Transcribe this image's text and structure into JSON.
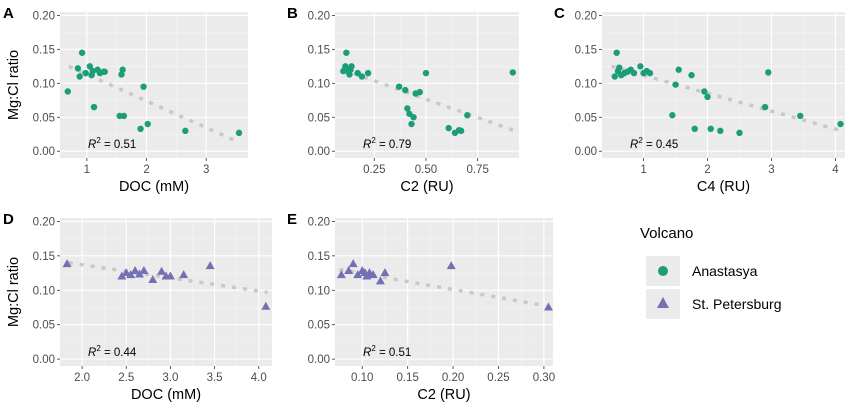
{
  "chart_data": [
    {
      "panel": "A",
      "type": "scatter",
      "xlabel": "DOC (mM)",
      "ylabel": "Mg:Cl ratio",
      "xlim": [
        0.55,
        3.7
      ],
      "ylim": [
        -0.01,
        0.205
      ],
      "xticks": [
        1,
        2,
        3
      ],
      "xtick_labels": [
        "1",
        "2",
        "3"
      ],
      "yticks": [
        0,
        0.05,
        0.1,
        0.15,
        0.2
      ],
      "ytick_labels": [
        "0.00",
        "0.05",
        "0.10",
        "0.15",
        "0.20"
      ],
      "annotation": "= 0.51",
      "trend": {
        "x": [
          0.7,
          3.5
        ],
        "y": [
          0.125,
          0.015
        ]
      },
      "series": [
        {
          "name": "Anastasya",
          "marker": "circle",
          "color": "#1b9e77",
          "x": [
            0.68,
            0.85,
            0.88,
            0.92,
            0.98,
            1.05,
            1.1,
            1.12,
            1.18,
            1.22,
            1.28,
            1.3,
            1.55,
            1.58,
            1.6,
            1.62,
            1.9,
            1.95,
            2.02,
            2.65,
            3.55,
            1.08
          ],
          "y": [
            0.088,
            0.122,
            0.11,
            0.145,
            0.115,
            0.125,
            0.118,
            0.065,
            0.12,
            0.115,
            0.117,
            0.117,
            0.052,
            0.113,
            0.12,
            0.052,
            0.033,
            0.095,
            0.04,
            0.03,
            0.027,
            0.112
          ]
        }
      ]
    },
    {
      "panel": "B",
      "type": "scatter",
      "xlabel": "C2 (RU)",
      "ylabel": "",
      "xlim": [
        0.06,
        0.95
      ],
      "ylim": [
        -0.01,
        0.205
      ],
      "xticks": [
        0.25,
        0.5,
        0.75
      ],
      "xtick_labels": [
        "0.25",
        "0.50",
        "0.75"
      ],
      "yticks": [
        0,
        0.05,
        0.1,
        0.15,
        0.2
      ],
      "ytick_labels": [
        "0.00",
        "0.05",
        "0.10",
        "0.15",
        "0.20"
      ],
      "annotation": "= 0.79",
      "trend": {
        "x": [
          0.1,
          0.93
        ],
        "y": [
          0.12,
          0.03
        ]
      },
      "series": [
        {
          "name": "Anastasya",
          "marker": "circle",
          "color": "#1b9e77",
          "x": [
            0.1,
            0.11,
            0.115,
            0.12,
            0.125,
            0.13,
            0.135,
            0.14,
            0.17,
            0.19,
            0.22,
            0.37,
            0.4,
            0.41,
            0.42,
            0.43,
            0.44,
            0.47,
            0.5,
            0.61,
            0.64,
            0.66,
            0.67,
            0.7,
            0.92,
            0.45
          ],
          "y": [
            0.118,
            0.125,
            0.145,
            0.12,
            0.117,
            0.113,
            0.12,
            0.125,
            0.115,
            0.11,
            0.115,
            0.095,
            0.09,
            0.063,
            0.055,
            0.04,
            0.05,
            0.087,
            0.115,
            0.034,
            0.027,
            0.031,
            0.03,
            0.053,
            0.116,
            0.085
          ]
        }
      ]
    },
    {
      "panel": "C",
      "type": "scatter",
      "xlabel": "C4 (RU)",
      "ylabel": "",
      "xlim": [
        0.35,
        4.15
      ],
      "ylim": [
        -0.01,
        0.205
      ],
      "xticks": [
        1,
        2,
        3,
        4
      ],
      "xtick_labels": [
        "1",
        "2",
        "3",
        "4"
      ],
      "yticks": [
        0,
        0.05,
        0.1,
        0.15,
        0.2
      ],
      "ytick_labels": [
        "0.00",
        "0.05",
        "0.10",
        "0.15",
        "0.20"
      ],
      "annotation": "= 0.45",
      "trend": {
        "x": [
          0.5,
          4.1
        ],
        "y": [
          0.125,
          0.03
        ]
      },
      "series": [
        {
          "name": "Anastasya",
          "marker": "circle",
          "color": "#1b9e77",
          "x": [
            0.55,
            0.58,
            0.6,
            0.62,
            0.65,
            0.7,
            0.75,
            0.85,
            0.95,
            1.0,
            1.05,
            1.1,
            1.45,
            1.55,
            1.75,
            1.8,
            1.95,
            2.0,
            2.05,
            2.2,
            2.5,
            2.9,
            2.95,
            3.45,
            4.08,
            1.5,
            0.8
          ],
          "y": [
            0.11,
            0.145,
            0.118,
            0.123,
            0.112,
            0.115,
            0.117,
            0.115,
            0.125,
            0.115,
            0.118,
            0.115,
            0.053,
            0.12,
            0.112,
            0.033,
            0.088,
            0.08,
            0.033,
            0.03,
            0.027,
            0.065,
            0.116,
            0.052,
            0.04,
            0.098,
            0.12
          ]
        }
      ]
    },
    {
      "panel": "D",
      "type": "scatter",
      "xlabel": "DOC (mM)",
      "ylabel": "Mg:Cl ratio",
      "xlim": [
        1.75,
        4.15
      ],
      "ylim": [
        -0.01,
        0.205
      ],
      "xticks": [
        2.0,
        2.5,
        3.0,
        3.5,
        4.0
      ],
      "xtick_labels": [
        "2.0",
        "2.5",
        "3.0",
        "3.5",
        "4.0"
      ],
      "yticks": [
        0,
        0.05,
        0.1,
        0.15,
        0.2
      ],
      "ytick_labels": [
        "0.00",
        "0.05",
        "0.10",
        "0.15",
        "0.20"
      ],
      "annotation": "= 0.44",
      "trend": {
        "x": [
          1.85,
          4.1
        ],
        "y": [
          0.14,
          0.097
        ]
      },
      "series": [
        {
          "name": "St. Petersburg",
          "marker": "triangle",
          "color": "#7570b3",
          "x": [
            1.83,
            2.45,
            2.5,
            2.55,
            2.6,
            2.65,
            2.7,
            2.8,
            2.9,
            2.95,
            3.0,
            3.15,
            3.45,
            4.08
          ],
          "y": [
            0.138,
            0.12,
            0.125,
            0.122,
            0.128,
            0.123,
            0.128,
            0.115,
            0.127,
            0.12,
            0.12,
            0.122,
            0.135,
            0.076
          ]
        }
      ]
    },
    {
      "panel": "E",
      "type": "scatter",
      "xlabel": "C2 (RU)",
      "ylabel": "",
      "xlim": [
        0.07,
        0.31
      ],
      "ylim": [
        -0.01,
        0.205
      ],
      "xticks": [
        0.1,
        0.15,
        0.2,
        0.25,
        0.3
      ],
      "xtick_labels": [
        "0.10",
        "0.15",
        "0.20",
        "0.25",
        "0.30"
      ],
      "yticks": [
        0,
        0.05,
        0.1,
        0.15,
        0.2
      ],
      "ytick_labels": [
        "0.00",
        "0.05",
        "0.10",
        "0.15",
        "0.20"
      ],
      "annotation": "= 0.51",
      "trend": {
        "x": [
          0.075,
          0.3
        ],
        "y": [
          0.13,
          0.078
        ]
      },
      "series": [
        {
          "name": "St. Petersburg",
          "marker": "triangle",
          "color": "#7570b3",
          "x": [
            0.077,
            0.085,
            0.09,
            0.095,
            0.1,
            0.103,
            0.105,
            0.108,
            0.112,
            0.12,
            0.125,
            0.198,
            0.305
          ],
          "y": [
            0.122,
            0.128,
            0.138,
            0.122,
            0.128,
            0.125,
            0.12,
            0.125,
            0.122,
            0.113,
            0.125,
            0.135,
            0.075
          ]
        }
      ]
    }
  ],
  "legend": {
    "title": "Volcano",
    "items": [
      {
        "label": "Anastasya",
        "marker": "circle",
        "color": "#1b9e77"
      },
      {
        "label": "St. Petersburg",
        "marker": "triangle",
        "color": "#7570b3"
      }
    ]
  }
}
